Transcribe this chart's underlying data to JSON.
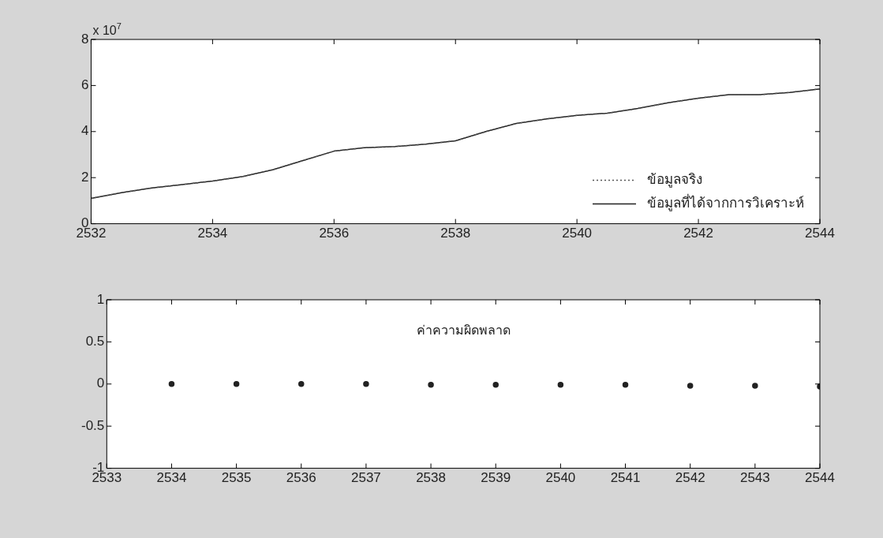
{
  "chart_data": [
    {
      "type": "line",
      "x": [
        2532,
        2532.5,
        2533,
        2533.5,
        2534,
        2534.5,
        2535,
        2535.5,
        2536,
        2536.5,
        2537,
        2537.5,
        2538,
        2538.5,
        2539,
        2539.5,
        2540,
        2540.5,
        2541,
        2541.5,
        2542,
        2542.5,
        2543,
        2543.5,
        2544
      ],
      "series": [
        {
          "name": "ข้อมูลจริง",
          "color": "#555555",
          "line_style": "dotted",
          "values": [
            1.1,
            1.35,
            1.55,
            1.7,
            1.85,
            2.05,
            2.35,
            2.75,
            3.15,
            3.3,
            3.35,
            3.45,
            3.6,
            4.0,
            4.35,
            4.55,
            4.7,
            4.8,
            5.0,
            5.25,
            5.45,
            5.6,
            5.6,
            5.7,
            5.85
          ]
        },
        {
          "name": "ข้อมูลที่ได้จากการวิเคราะห์",
          "color": "#222222",
          "line_style": "solid",
          "values": [
            1.1,
            1.35,
            1.55,
            1.7,
            1.85,
            2.05,
            2.35,
            2.75,
            3.15,
            3.3,
            3.35,
            3.45,
            3.6,
            4.0,
            4.35,
            4.55,
            4.7,
            4.8,
            5.0,
            5.25,
            5.45,
            5.6,
            5.6,
            5.7,
            5.85
          ]
        }
      ],
      "xlim": [
        2532,
        2544
      ],
      "xticks": [
        2532,
        2534,
        2536,
        2538,
        2540,
        2542,
        2544
      ],
      "ylim": [
        0,
        8
      ],
      "yticks": [
        0,
        2,
        4,
        6,
        8
      ],
      "annotations": [
        "x 10$^{7}$"
      ],
      "grid": false,
      "legend": "bottom right",
      "marker": "none"
    },
    {
      "type": "scatter",
      "x": [
        2534,
        2535,
        2536,
        2537,
        2538,
        2539,
        2540,
        2541,
        2542,
        2543,
        2544
      ],
      "series": [
        {
          "color": "#222222",
          "values": [
            0,
            0,
            0,
            0,
            -0.01,
            -0.01,
            -0.01,
            -0.01,
            -0.02,
            -0.02,
            -0.03
          ]
        }
      ],
      "xlim": [
        2533,
        2544
      ],
      "xticks": [
        2533,
        2534,
        2535,
        2536,
        2537,
        2538,
        2539,
        2540,
        2541,
        2542,
        2543,
        2544
      ],
      "ylim": [
        -1,
        1
      ],
      "yticks": [
        -1,
        -0.5,
        0,
        0.5,
        1
      ],
      "annotations": [
        "ค่าความผิดพลาด"
      ],
      "grid": false,
      "legend": false,
      "marker": "circle"
    }
  ]
}
